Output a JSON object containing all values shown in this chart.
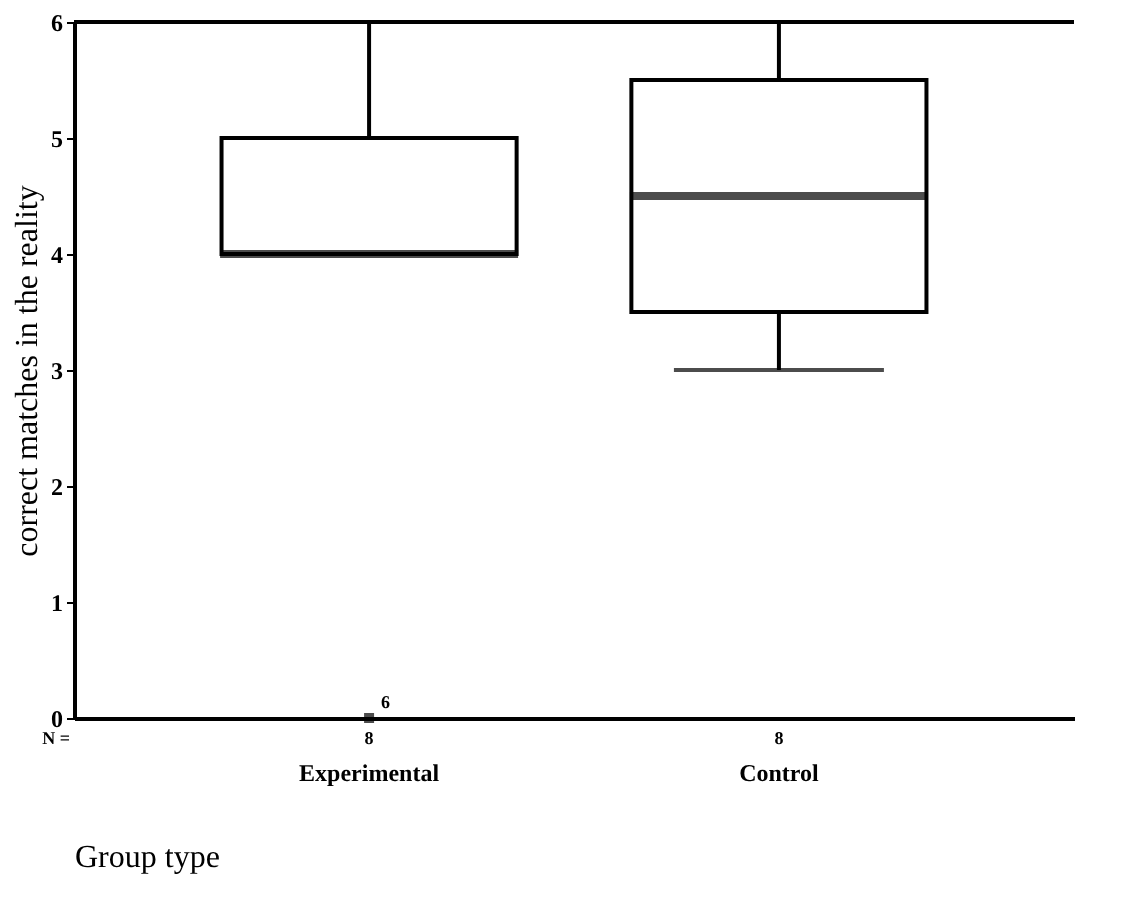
{
  "chart_data": {
    "type": "box",
    "xlabel": "Group type",
    "ylabel": "correct matches in the reality",
    "categories": [
      "Experimental",
      "Control"
    ],
    "boxes": [
      {
        "low": 4,
        "q1": 4,
        "median": 4,
        "q3": 5,
        "high": 6,
        "outliers": [
          0
        ]
      },
      {
        "low": 3,
        "q1": 3.5,
        "median": 4.5,
        "q3": 5.5,
        "high": 6
      }
    ],
    "ylim": [
      0,
      6
    ],
    "yticks": [
      0,
      1,
      2,
      3,
      4,
      5,
      6
    ],
    "grid": false,
    "annotations": [
      "N =",
      "8",
      "8",
      "6"
    ]
  }
}
